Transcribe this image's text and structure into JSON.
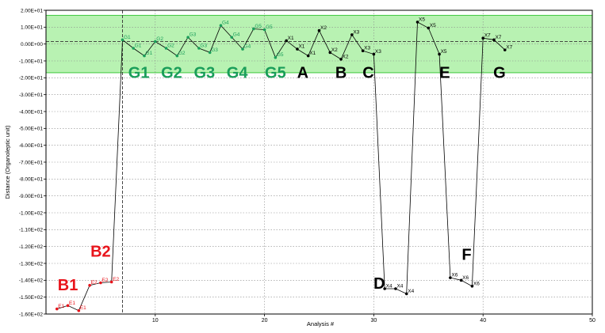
{
  "chart_data": {
    "type": "line",
    "xlabel": "Analysis #",
    "ylabel": "Distance (Organoleptic unit)",
    "xlim": [
      0,
      50
    ],
    "ylim": [
      -160,
      20
    ],
    "xticks": [
      "10",
      "20",
      "30",
      "40",
      "50"
    ],
    "yticks": [
      "2.00E+01",
      "1.00E+01",
      "0.00E+00",
      "-1.00E+01",
      "-2.00E+01",
      "-3.00E+01",
      "-4.00E+01",
      "-5.00E+01",
      "-6.00E+01",
      "-7.00E+01",
      "-8.00E+01",
      "-9.00E+01",
      "-1.00E+02",
      "-1.10E+02",
      "-1.20E+02",
      "-1.30E+02",
      "-1.40E+02",
      "-1.50E+02",
      "-1.60E+02"
    ],
    "grid": true,
    "acceptance_band": [
      -17,
      17
    ],
    "center_line": 1.5,
    "vline_x": 7,
    "colors": {
      "band": "#b8f2b2",
      "band_edge": "#3cc83c",
      "line": "#000000",
      "red": "#e8141b",
      "green": "#1a9e5a",
      "black": "#000000"
    },
    "series": [
      {
        "values": [
          {
            "x": 1,
            "y": -157,
            "label": "E1"
          },
          {
            "x": 2,
            "y": -155,
            "label": "E1"
          },
          {
            "x": 3,
            "y": -158,
            "label": "E1"
          },
          {
            "x": 4,
            "y": -143,
            "label": "E2"
          },
          {
            "x": 5,
            "y": -141.5,
            "label": "E2"
          },
          {
            "x": 6,
            "y": -141,
            "label": "E2"
          },
          {
            "x": 7,
            "y": 2.5,
            "label": "G1"
          },
          {
            "x": 8,
            "y": -2.5,
            "label": "G1"
          },
          {
            "x": 9,
            "y": -7,
            "label": "G1"
          },
          {
            "x": 10,
            "y": 1.5,
            "label": "G2"
          },
          {
            "x": 11,
            "y": -2.5,
            "label": "G2"
          },
          {
            "x": 12,
            "y": -7,
            "label": "G2"
          },
          {
            "x": 13,
            "y": 4,
            "label": "G3"
          },
          {
            "x": 14,
            "y": -2.5,
            "label": "G3"
          },
          {
            "x": 15,
            "y": -5,
            "label": "G3"
          },
          {
            "x": 16,
            "y": 11,
            "label": "G4"
          },
          {
            "x": 17,
            "y": 4,
            "label": "G4"
          },
          {
            "x": 18,
            "y": -3,
            "label": "G4"
          },
          {
            "x": 19,
            "y": 9,
            "label": "G5"
          },
          {
            "x": 20,
            "y": 8.5,
            "label": "G5"
          },
          {
            "x": 21,
            "y": -8,
            "label": "G5"
          },
          {
            "x": 22,
            "y": 2,
            "label": "X1"
          },
          {
            "x": 23,
            "y": -3,
            "label": "X1"
          },
          {
            "x": 24,
            "y": -7,
            "label": "X1"
          },
          {
            "x": 25,
            "y": 8,
            "label": "X2"
          },
          {
            "x": 26,
            "y": -5,
            "label": "X2"
          },
          {
            "x": 27,
            "y": -9,
            "label": "X2"
          },
          {
            "x": 28,
            "y": 5.5,
            "label": "X3"
          },
          {
            "x": 29,
            "y": -4,
            "label": "X3"
          },
          {
            "x": 30,
            "y": -6,
            "label": "X3"
          },
          {
            "x": 31,
            "y": -145,
            "label": "X4"
          },
          {
            "x": 32,
            "y": -145,
            "label": "X4"
          },
          {
            "x": 33,
            "y": -148,
            "label": "X4"
          },
          {
            "x": 34,
            "y": 13,
            "label": "X5"
          },
          {
            "x": 35,
            "y": 9.5,
            "label": "X5"
          },
          {
            "x": 36,
            "y": -6,
            "label": "X5"
          },
          {
            "x": 37,
            "y": -138.5,
            "label": "X6"
          },
          {
            "x": 38,
            "y": -140,
            "label": "X6"
          },
          {
            "x": 39,
            "y": -143.5,
            "label": "X6"
          },
          {
            "x": 40,
            "y": 3.5,
            "label": "X7"
          },
          {
            "x": 41,
            "y": 2.5,
            "label": "X7"
          },
          {
            "x": 42,
            "y": -3.5,
            "label": "X7"
          }
        ]
      }
    ],
    "annotations": [
      {
        "text": "B1",
        "color": "red",
        "anchor_x": 2,
        "anchor_y": -146
      },
      {
        "text": "B2",
        "color": "red",
        "anchor_x": 5,
        "anchor_y": -126
      },
      {
        "text": "G1",
        "color": "green",
        "anchor_x": 8.5,
        "anchor_y": -20
      },
      {
        "text": "G2",
        "color": "green",
        "anchor_x": 11.5,
        "anchor_y": -20
      },
      {
        "text": "G3",
        "color": "green",
        "anchor_x": 14.5,
        "anchor_y": -20
      },
      {
        "text": "G4",
        "color": "green",
        "anchor_x": 17.5,
        "anchor_y": -20
      },
      {
        "text": "G5",
        "color": "green",
        "anchor_x": 21,
        "anchor_y": -20
      },
      {
        "text": "A",
        "color": "black",
        "anchor_x": 23.5,
        "anchor_y": -20
      },
      {
        "text": "B",
        "color": "black",
        "anchor_x": 27,
        "anchor_y": -20
      },
      {
        "text": "C",
        "color": "black",
        "anchor_x": 29.5,
        "anchor_y": -20
      },
      {
        "text": "D",
        "color": "black",
        "anchor_x": 30.5,
        "anchor_y": -145
      },
      {
        "text": "E",
        "color": "black",
        "anchor_x": 36.5,
        "anchor_y": -20
      },
      {
        "text": "F",
        "color": "black",
        "anchor_x": 38.5,
        "anchor_y": -128
      },
      {
        "text": "G",
        "color": "black",
        "anchor_x": 41.5,
        "anchor_y": -20
      }
    ]
  }
}
